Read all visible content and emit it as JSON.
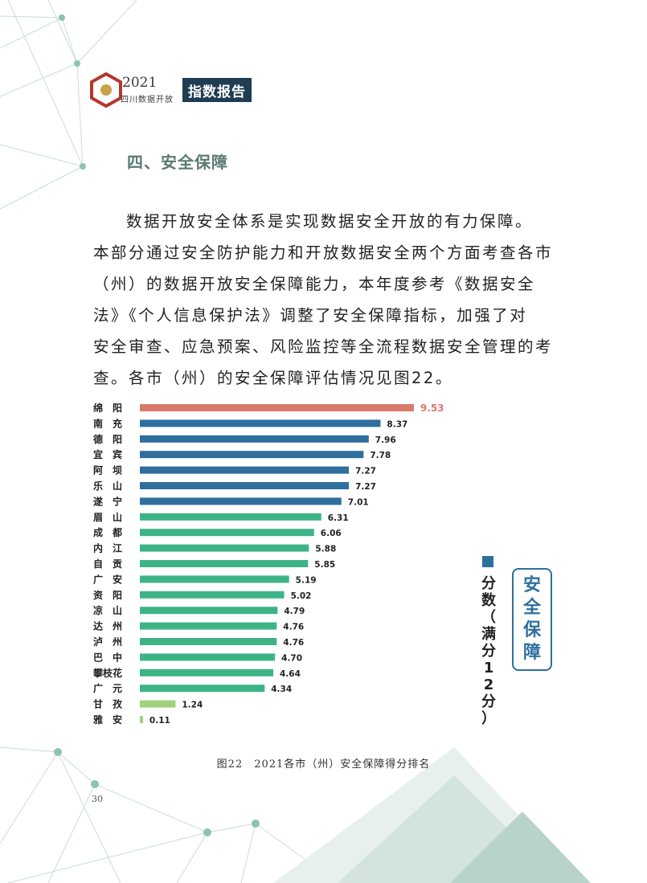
{
  "header": {
    "year": "2021",
    "subtitle": "四川数据开放",
    "report_tag": "指数报告"
  },
  "section": {
    "title": "四、安全保障"
  },
  "paragraph": {
    "lines": [
      "数据开放安全体系是实现数据安全开放的有力保障。",
      "本部分通过安全防护能力和开放数据安全两个方面考查各市",
      "（州）的数据开放安全保障能力，本年度参考《数据安全",
      "法》《个人信息保护法》调整了安全保障指标，加强了对",
      "安全审查、应急预案、风险监控等全流程数据安全管理的考",
      "查。各市（州）的安全保障评估情况见图22。"
    ]
  },
  "legend": {
    "series_label": "分数（满分12分）",
    "badge_text": "安全保障"
  },
  "colors": {
    "top": "#d97a6c",
    "blue": "#2e6f9e",
    "green": "#3db487",
    "light_green": "#9fd27a"
  },
  "chart_data": {
    "type": "bar",
    "orientation": "horizontal",
    "title": "2021各市（州）安全保障得分排名",
    "xlabel": "分数（满分12分）",
    "ylabel": "",
    "xlim": [
      0,
      12
    ],
    "categories": [
      "绵阳",
      "南充",
      "德阳",
      "宜宾",
      "阿坝",
      "乐山",
      "遂宁",
      "眉山",
      "成都",
      "内江",
      "自贡",
      "广安",
      "资阳",
      "凉山",
      "达州",
      "泸州",
      "巴中",
      "攀枝花",
      "广元",
      "甘孜",
      "雅安"
    ],
    "category_labels": [
      "绵　阳",
      "南　充",
      "德　阳",
      "宜　宾",
      "阿　坝",
      "乐　山",
      "遂　宁",
      "眉　山",
      "成　都",
      "内　江",
      "自　贡",
      "广　安",
      "资　阳",
      "凉　山",
      "达　州",
      "泸　州",
      "巴　中",
      "攀枝花",
      "广　元",
      "甘　孜",
      "雅　安"
    ],
    "values": [
      9.53,
      8.37,
      7.96,
      7.78,
      7.27,
      7.27,
      7.01,
      6.31,
      6.06,
      5.88,
      5.85,
      5.19,
      5.02,
      4.79,
      4.76,
      4.76,
      4.7,
      4.64,
      4.34,
      1.24,
      0.11
    ],
    "value_labels": [
      "9.53",
      "8.37",
      "7.96",
      "7.78",
      "7.27",
      "7.27",
      "7.01",
      "6.31",
      "6.06",
      "5.88",
      "5.85",
      "5.19",
      "5.02",
      "4.79",
      "4.76",
      "4.76",
      "4.70",
      "4.64",
      "4.34",
      "1.24",
      "0.11"
    ],
    "color_groups": [
      "top",
      "blue",
      "blue",
      "blue",
      "blue",
      "blue",
      "blue",
      "green",
      "green",
      "green",
      "green",
      "green",
      "green",
      "green",
      "green",
      "green",
      "green",
      "green",
      "green",
      "light_green",
      "light_green"
    ]
  },
  "caption": "图22　2021各市（州）安全保障得分排名",
  "page_number": "30"
}
